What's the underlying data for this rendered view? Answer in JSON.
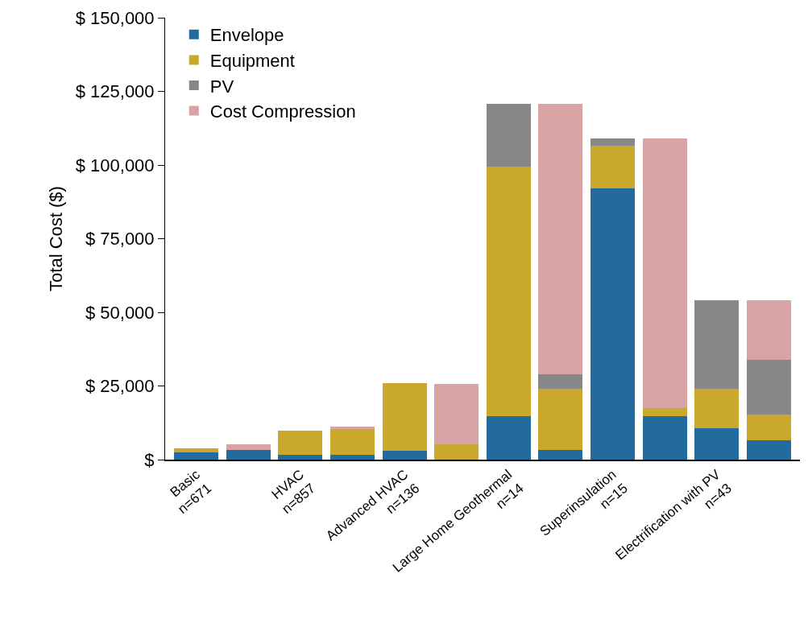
{
  "chart_data": {
    "type": "bar",
    "stacked": true,
    "ylabel": "Total Cost ($)",
    "categories": [
      "Basic\nn=671",
      null,
      "HVAC\nn=857",
      null,
      "Advanced HVAC\nn=136",
      null,
      "Large Home Geothermal\nn=14",
      null,
      "Superinsulation\nn=15",
      null,
      "Electrification with PV\nn=43",
      null
    ],
    "series": [
      {
        "name": "Envelope",
        "color": "#236b9e",
        "values": [
          2500,
          3300,
          1600,
          1600,
          3000,
          null,
          14700,
          3300,
          92000,
          14700,
          10600,
          6600
        ]
      },
      {
        "name": "Equipment",
        "color": "#c9a82c",
        "values": [
          1200,
          null,
          8200,
          8800,
          22900,
          5200,
          84700,
          20700,
          14500,
          2800,
          13400,
          8700
        ]
      },
      {
        "name": "PV",
        "color": "#878787",
        "values": [
          null,
          null,
          null,
          null,
          null,
          null,
          21300,
          4900,
          2400,
          null,
          30000,
          18600
        ]
      },
      {
        "name": "Cost Compression",
        "color": "#d9a3a6",
        "values": [
          null,
          1900,
          null,
          800,
          null,
          20400,
          null,
          91800,
          null,
          91400,
          null,
          20100
        ]
      }
    ],
    "ylim": [
      0,
      150000
    ],
    "yticks": [
      {
        "value": 0,
        "label": "$"
      },
      {
        "value": 25000,
        "label": "$ 25,000"
      },
      {
        "value": 50000,
        "label": "$ 50,000"
      },
      {
        "value": 75000,
        "label": "$ 75,000"
      },
      {
        "value": 100000,
        "label": "$ 100,000"
      },
      {
        "value": 125000,
        "label": "$ 125,000"
      },
      {
        "value": 150000,
        "label": "$ 150,000"
      }
    ],
    "grid": false,
    "legend": "top left"
  }
}
